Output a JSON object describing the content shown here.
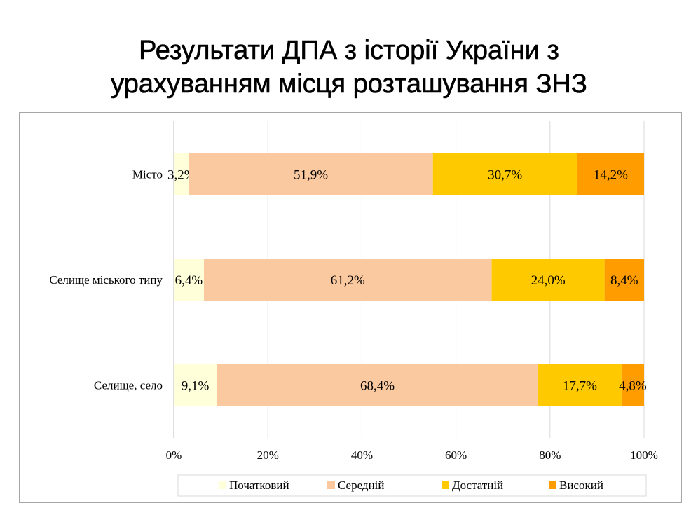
{
  "title": {
    "line1": "Результати ДПА з історії України з",
    "line2": "урахуванням місця розташування ЗНЗ"
  },
  "chart_data": {
    "type": "bar",
    "orientation": "horizontal",
    "stacked": "percent",
    "categories": [
      "Місто",
      "Селище міського типу",
      "Селище, село"
    ],
    "series": [
      {
        "name": "Початковий",
        "color": "#ffffd9",
        "values": [
          3.2,
          6.4,
          9.1
        ],
        "labels": [
          "3,2%",
          "6,4%",
          "9,1%"
        ]
      },
      {
        "name": "Середній",
        "color": "#fbc9a0",
        "values": [
          51.9,
          61.2,
          68.4
        ],
        "labels": [
          "51,9%",
          "61,2%",
          "68,4%"
        ]
      },
      {
        "name": "Достатній",
        "color": "#ffc900",
        "values": [
          30.7,
          24.0,
          17.7
        ],
        "labels": [
          "30,7%",
          "24,0%",
          "17,7%"
        ]
      },
      {
        "name": "Високий",
        "color": "#ff9c00",
        "values": [
          14.2,
          8.4,
          4.8
        ],
        "labels": [
          "14,2%",
          "8,4%",
          "4,8%"
        ]
      }
    ],
    "x_ticks": [
      "0%",
      "20%",
      "40%",
      "60%",
      "80%",
      "100%"
    ],
    "xlim": [
      0,
      100
    ],
    "grid": true,
    "legend": "bottom"
  }
}
